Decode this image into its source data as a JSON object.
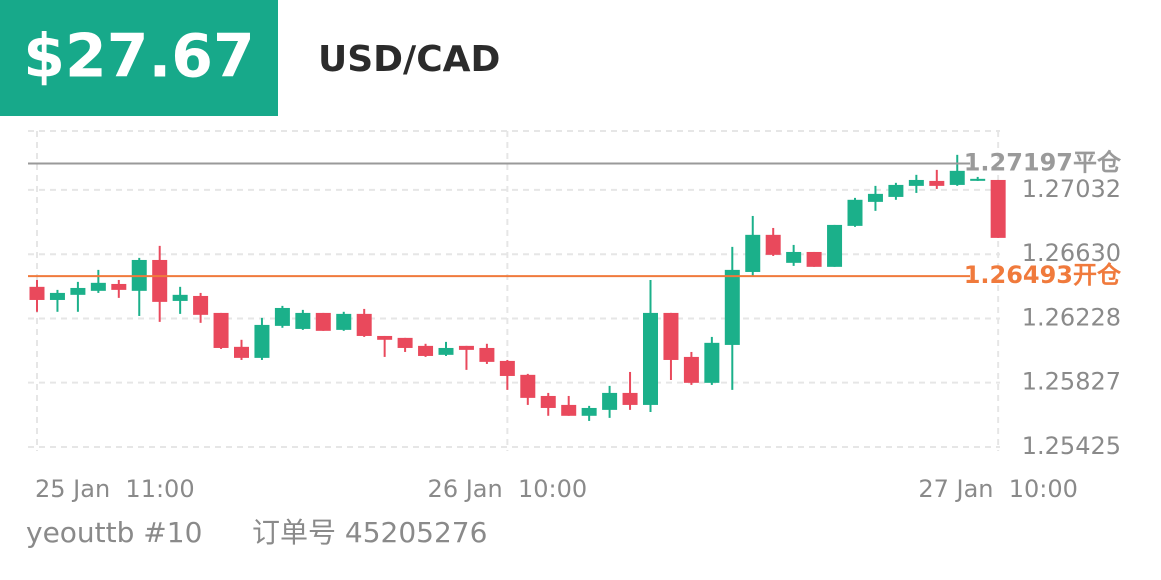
{
  "header": {
    "price": "$27.67",
    "pair": "USD/CAD"
  },
  "footer": {
    "account": "yeouttb #10",
    "order": "订单号 45205276"
  },
  "chart_data": {
    "type": "candlestick",
    "categories": [
      "25 Jan  11:00",
      null,
      null,
      null,
      null,
      null,
      null,
      null,
      null,
      null,
      null,
      null,
      null,
      null,
      null,
      null,
      null,
      null,
      null,
      null,
      null,
      null,
      null,
      "26 Jan  10:00",
      null,
      null,
      null,
      null,
      null,
      null,
      null,
      null,
      null,
      null,
      null,
      null,
      null,
      null,
      null,
      null,
      null,
      null,
      null,
      null,
      null,
      null,
      null,
      "27 Jan  10:00"
    ],
    "open": [
      1.26426,
      1.26344,
      1.26376,
      1.26401,
      1.26444,
      1.26401,
      1.26594,
      1.26338,
      1.26369,
      1.26263,
      1.26051,
      1.25982,
      1.26182,
      1.26163,
      1.26263,
      1.26157,
      1.26257,
      1.26119,
      1.26107,
      1.26057,
      1.26001,
      1.26057,
      1.26044,
      1.25963,
      1.25876,
      1.25744,
      1.25688,
      1.2562,
      1.25657,
      1.25763,
      1.25688,
      1.26263,
      1.25988,
      1.25826,
      1.26063,
      1.26519,
      1.26751,
      1.26576,
      1.26644,
      1.26551,
      1.26807,
      1.26957,
      1.26988,
      1.27057,
      1.27088,
      1.27063,
      1.27094,
      1.27094
    ],
    "high": [
      1.26469,
      1.26407,
      1.26457,
      1.26532,
      1.26469,
      1.26607,
      1.26682,
      1.26426,
      1.26388,
      1.26263,
      1.26095,
      1.26232,
      1.26307,
      1.26282,
      1.26263,
      1.2627,
      1.26288,
      1.26119,
      1.26107,
      1.2607,
      1.26082,
      1.26057,
      1.2607,
      1.25969,
      1.25882,
      1.25763,
      1.25744,
      1.25682,
      1.25807,
      1.25894,
      1.26469,
      1.26263,
      1.26019,
      1.26113,
      1.26676,
      1.26869,
      1.26794,
      1.26688,
      1.26644,
      1.26813,
      1.26982,
      1.27057,
      1.27076,
      1.27126,
      1.27157,
      1.27251,
      1.27113,
      1.27094
    ],
    "low": [
      1.2627,
      1.2627,
      1.2627,
      1.26388,
      1.26357,
      1.26244,
      1.26207,
      1.26257,
      1.26201,
      1.26038,
      1.25969,
      1.25969,
      1.2617,
      1.26157,
      1.26151,
      1.26151,
      1.26113,
      1.25988,
      1.26019,
      1.25988,
      1.25994,
      1.25907,
      1.25944,
      1.25782,
      1.25688,
      1.2562,
      1.2562,
      1.25588,
      1.25607,
      1.25657,
      1.25644,
      1.25844,
      1.25813,
      1.25813,
      1.25782,
      1.26494,
      1.26619,
      1.26557,
      1.26551,
      1.26551,
      1.26801,
      1.26901,
      1.2697,
      1.27013,
      1.27038,
      1.27057,
      1.27088,
      1.26732
    ],
    "close": [
      1.26344,
      1.26388,
      1.26419,
      1.26451,
      1.26407,
      1.26594,
      1.26332,
      1.26376,
      1.26251,
      1.26044,
      1.25982,
      1.26188,
      1.26294,
      1.26263,
      1.26151,
      1.26257,
      1.26119,
      1.26095,
      1.26044,
      1.25994,
      1.26044,
      1.26032,
      1.25957,
      1.25869,
      1.25732,
      1.25669,
      1.2562,
      1.25669,
      1.25763,
      1.25688,
      1.26263,
      1.25969,
      1.25826,
      1.26076,
      1.26532,
      1.26751,
      1.26626,
      1.26644,
      1.26551,
      1.26813,
      1.2697,
      1.27007,
      1.27063,
      1.27094,
      1.27057,
      1.27151,
      1.27101,
      1.26732
    ],
    "up_color": "#1bb08a",
    "down_color": "#e9495c",
    "ylim": [
      1.254,
      1.274
    ],
    "yticks": [
      1.27032,
      {
        "value": 1.2663,
        "label": "1.26630"
      },
      1.26228,
      1.25827,
      1.25425
    ],
    "grid": true,
    "lines": [
      {
        "value": 1.27197,
        "label": "1.27197平仓",
        "color": "#9a9a9a"
      },
      {
        "value": 1.26493,
        "label": "1.26493开仓",
        "color": "#f07a3c"
      }
    ]
  }
}
